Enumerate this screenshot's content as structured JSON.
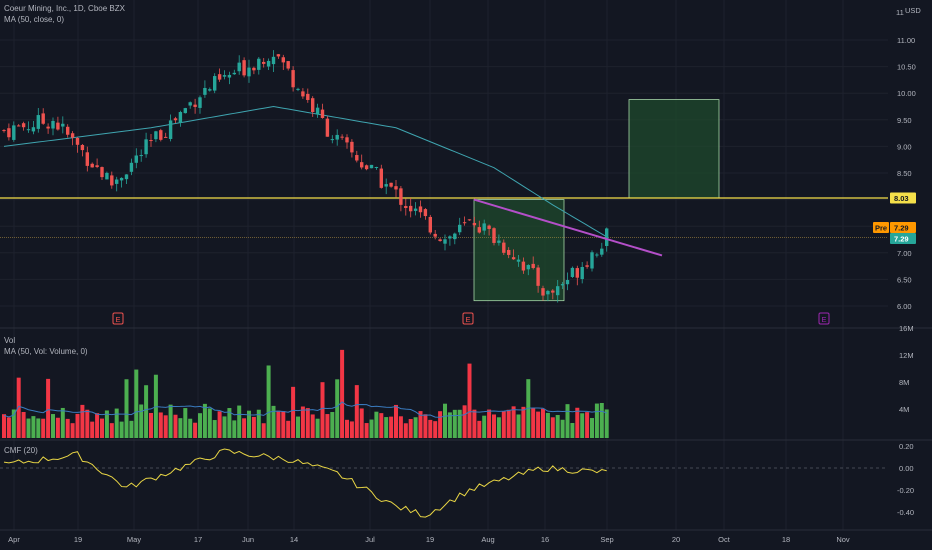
{
  "price_pane": {
    "title": "Coeur Mining, Inc., 1D, Cboe BZX",
    "indicator": "MA (50, close, 0)",
    "currency": "USD",
    "y_ticks": [
      "11.00",
      "10.50",
      "10.00",
      "9.50",
      "9.00",
      "8.50",
      "8.00",
      "7.50",
      "7.00",
      "6.50",
      "6.00"
    ],
    "y_top_partial": "11",
    "resistance_label": "8.03",
    "pre_label": "Pre",
    "pre_value": "7.29",
    "last_value": "7.29",
    "earnings_marker": "E"
  },
  "volume_pane": {
    "title": "Vol",
    "indicator": "MA (50, Vol: Volume, 0)",
    "y_ticks": [
      "16M",
      "12M",
      "8M",
      "4M"
    ]
  },
  "cmf_pane": {
    "title": "CMF (20)",
    "y_ticks": [
      "0.20",
      "0.00",
      "-0.20",
      "-0.40"
    ]
  },
  "x_axis": {
    "labels": [
      "Apr",
      "19",
      "May",
      "17",
      "Jun",
      "14",
      "Jul",
      "19",
      "Aug",
      "16",
      "Sep",
      "20",
      "Oct",
      "18",
      "Nov"
    ]
  },
  "colors": {
    "background": "#131722",
    "up": "#26a69a",
    "down": "#ef5350",
    "vol_up": "#4caf50",
    "vol_down": "#f23645",
    "ma": "#3fa5b0",
    "resistance": "#f5e04a",
    "trendline": "#b44fc9",
    "box_fill": "#1f4a2c",
    "box_border": "#a5d6a7",
    "cmf_line": "#e8d545"
  },
  "chart_data": {
    "type": "candlestick",
    "title": "Coeur Mining, Inc., 1D, Cboe BZX",
    "x": [
      "Apr",
      "19",
      "May",
      "17",
      "Jun",
      "14",
      "Jul",
      "19",
      "Aug",
      "16",
      "Sep",
      "20",
      "Oct",
      "18",
      "Nov"
    ],
    "ylim": [
      5.8,
      11.15
    ],
    "anchors_price": [
      {
        "date_index": 0,
        "close": 9.3
      },
      {
        "date_index": 10,
        "close": 9.5
      },
      {
        "date_index": 22,
        "close": 8.3
      },
      {
        "date_index": 40,
        "close": 10.0
      },
      {
        "date_index": 55,
        "close": 10.8
      },
      {
        "date_index": 67,
        "close": 9.2
      },
      {
        "date_index": 80,
        "close": 8.1
      },
      {
        "date_index": 90,
        "close": 7.25
      },
      {
        "date_index": 96,
        "close": 7.6
      },
      {
        "date_index": 105,
        "close": 6.9
      },
      {
        "date_index": 111,
        "close": 6.2
      },
      {
        "date_index": 116,
        "close": 6.6
      },
      {
        "date_index": 123,
        "close": 7.29
      }
    ],
    "resistance_level": 8.03,
    "ma50_anchors": [
      {
        "date_index": 0,
        "value": 9.0
      },
      {
        "date_index": 30,
        "value": 9.35
      },
      {
        "date_index": 55,
        "value": 9.75
      },
      {
        "date_index": 80,
        "value": 9.35
      },
      {
        "date_index": 100,
        "value": 8.6
      },
      {
        "date_index": 112,
        "value": 7.9
      },
      {
        "date_index": 123,
        "value": 7.3
      }
    ],
    "cmf_anchors": [
      {
        "date_index": 0,
        "value": 0.03
      },
      {
        "date_index": 15,
        "value": 0.12
      },
      {
        "date_index": 25,
        "value": -0.18
      },
      {
        "date_index": 45,
        "value": 0.15
      },
      {
        "date_index": 58,
        "value": 0.08
      },
      {
        "date_index": 68,
        "value": -0.05
      },
      {
        "date_index": 80,
        "value": -0.35
      },
      {
        "date_index": 86,
        "value": -0.43
      },
      {
        "date_index": 95,
        "value": -0.2
      },
      {
        "date_index": 110,
        "value": 0.0
      },
      {
        "date_index": 123,
        "value": -0.04
      }
    ]
  }
}
